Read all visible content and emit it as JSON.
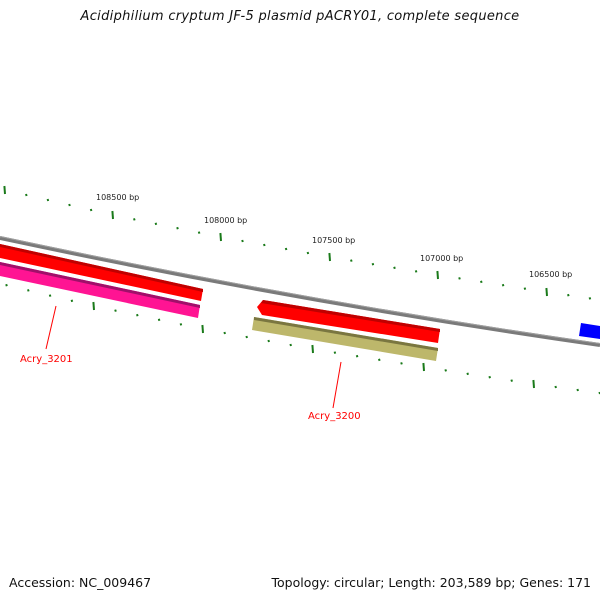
{
  "title": "Acidiphilium cryptum JF-5 plasmid pACRY01, complete sequence",
  "ruler": {
    "labels": [
      "108500 bp",
      "108000 bp",
      "107500 bp",
      "107000 bp",
      "106500 bp"
    ]
  },
  "genes": [
    {
      "label": "Acry_3201",
      "color": "#ff1493"
    },
    {
      "label": "Acry_3200",
      "color": "#bdb76b"
    }
  ],
  "colors": {
    "forward_cds": "#ff0000",
    "backbone": "#808080",
    "ticks": "#1a7a1a",
    "other": "#0000ff"
  },
  "footer": {
    "accession": "Accession: NC_009467",
    "summary": "Topology: circular; Length: 203,589 bp; Genes: 171"
  }
}
